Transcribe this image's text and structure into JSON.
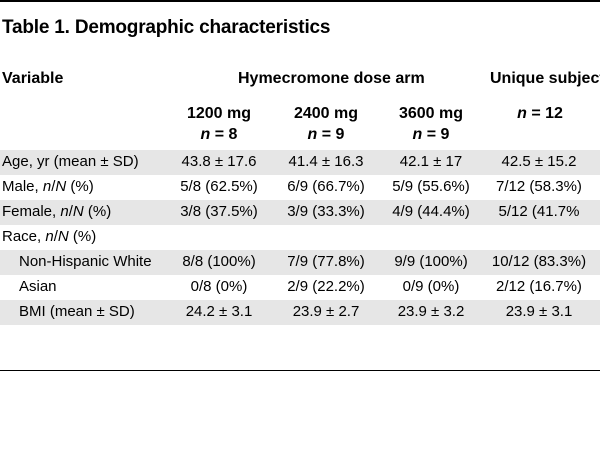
{
  "title": "Table 1. Demographic characteristics",
  "headers": {
    "variable": "Variable",
    "arm": "Hymecromone dose arm",
    "unique": "Unique subjects"
  },
  "doses": [
    {
      "dose": "1200 mg",
      "n_label": "n",
      "n_value": " = 8"
    },
    {
      "dose": "2400 mg",
      "n_label": "n",
      "n_value": " = 9"
    },
    {
      "dose": "3600 mg",
      "n_label": "n",
      "n_value": " = 9"
    },
    {
      "dose": "",
      "n_label": "n",
      "n_value": " = 12"
    }
  ],
  "rows": [
    {
      "label": "Age, yr (mean ± SD)",
      "values": [
        "43.8 ± 17.6",
        "41.4 ± 16.3",
        "42.1 ± 17",
        "42.5 ± 15.2"
      ]
    },
    {
      "label": "Male, n/N (%)",
      "values": [
        "5/8 (62.5%)",
        "6/9 (66.7%)",
        "5/9 (55.6%)",
        "7/12 (58.3%)"
      ]
    },
    {
      "label": "Female, n/N (%)",
      "values": [
        "3/8 (37.5%)",
        "3/9 (33.3%)",
        "4/9 (44.4%)",
        "5/12 (41.7%"
      ]
    },
    {
      "label": "Race, n/N (%)",
      "values": [
        "",
        "",
        "",
        ""
      ]
    },
    {
      "label": "Non-Hispanic White",
      "values": [
        "8/8 (100%)",
        "7/9 (77.8%)",
        "9/9 (100%)",
        "10/12 (83.3%)"
      ]
    },
    {
      "label": "Asian",
      "values": [
        "0/8 (0%)",
        "2/9 (22.2%)",
        "0/9 (0%)",
        "2/12 (16.7%)"
      ]
    },
    {
      "label": "BMI (mean ± SD)",
      "values": [
        "24.2 ± 3.1",
        "23.9 ± 2.7",
        "23.9 ± 3.2",
        "23.9 ± 3.1"
      ]
    }
  ]
}
